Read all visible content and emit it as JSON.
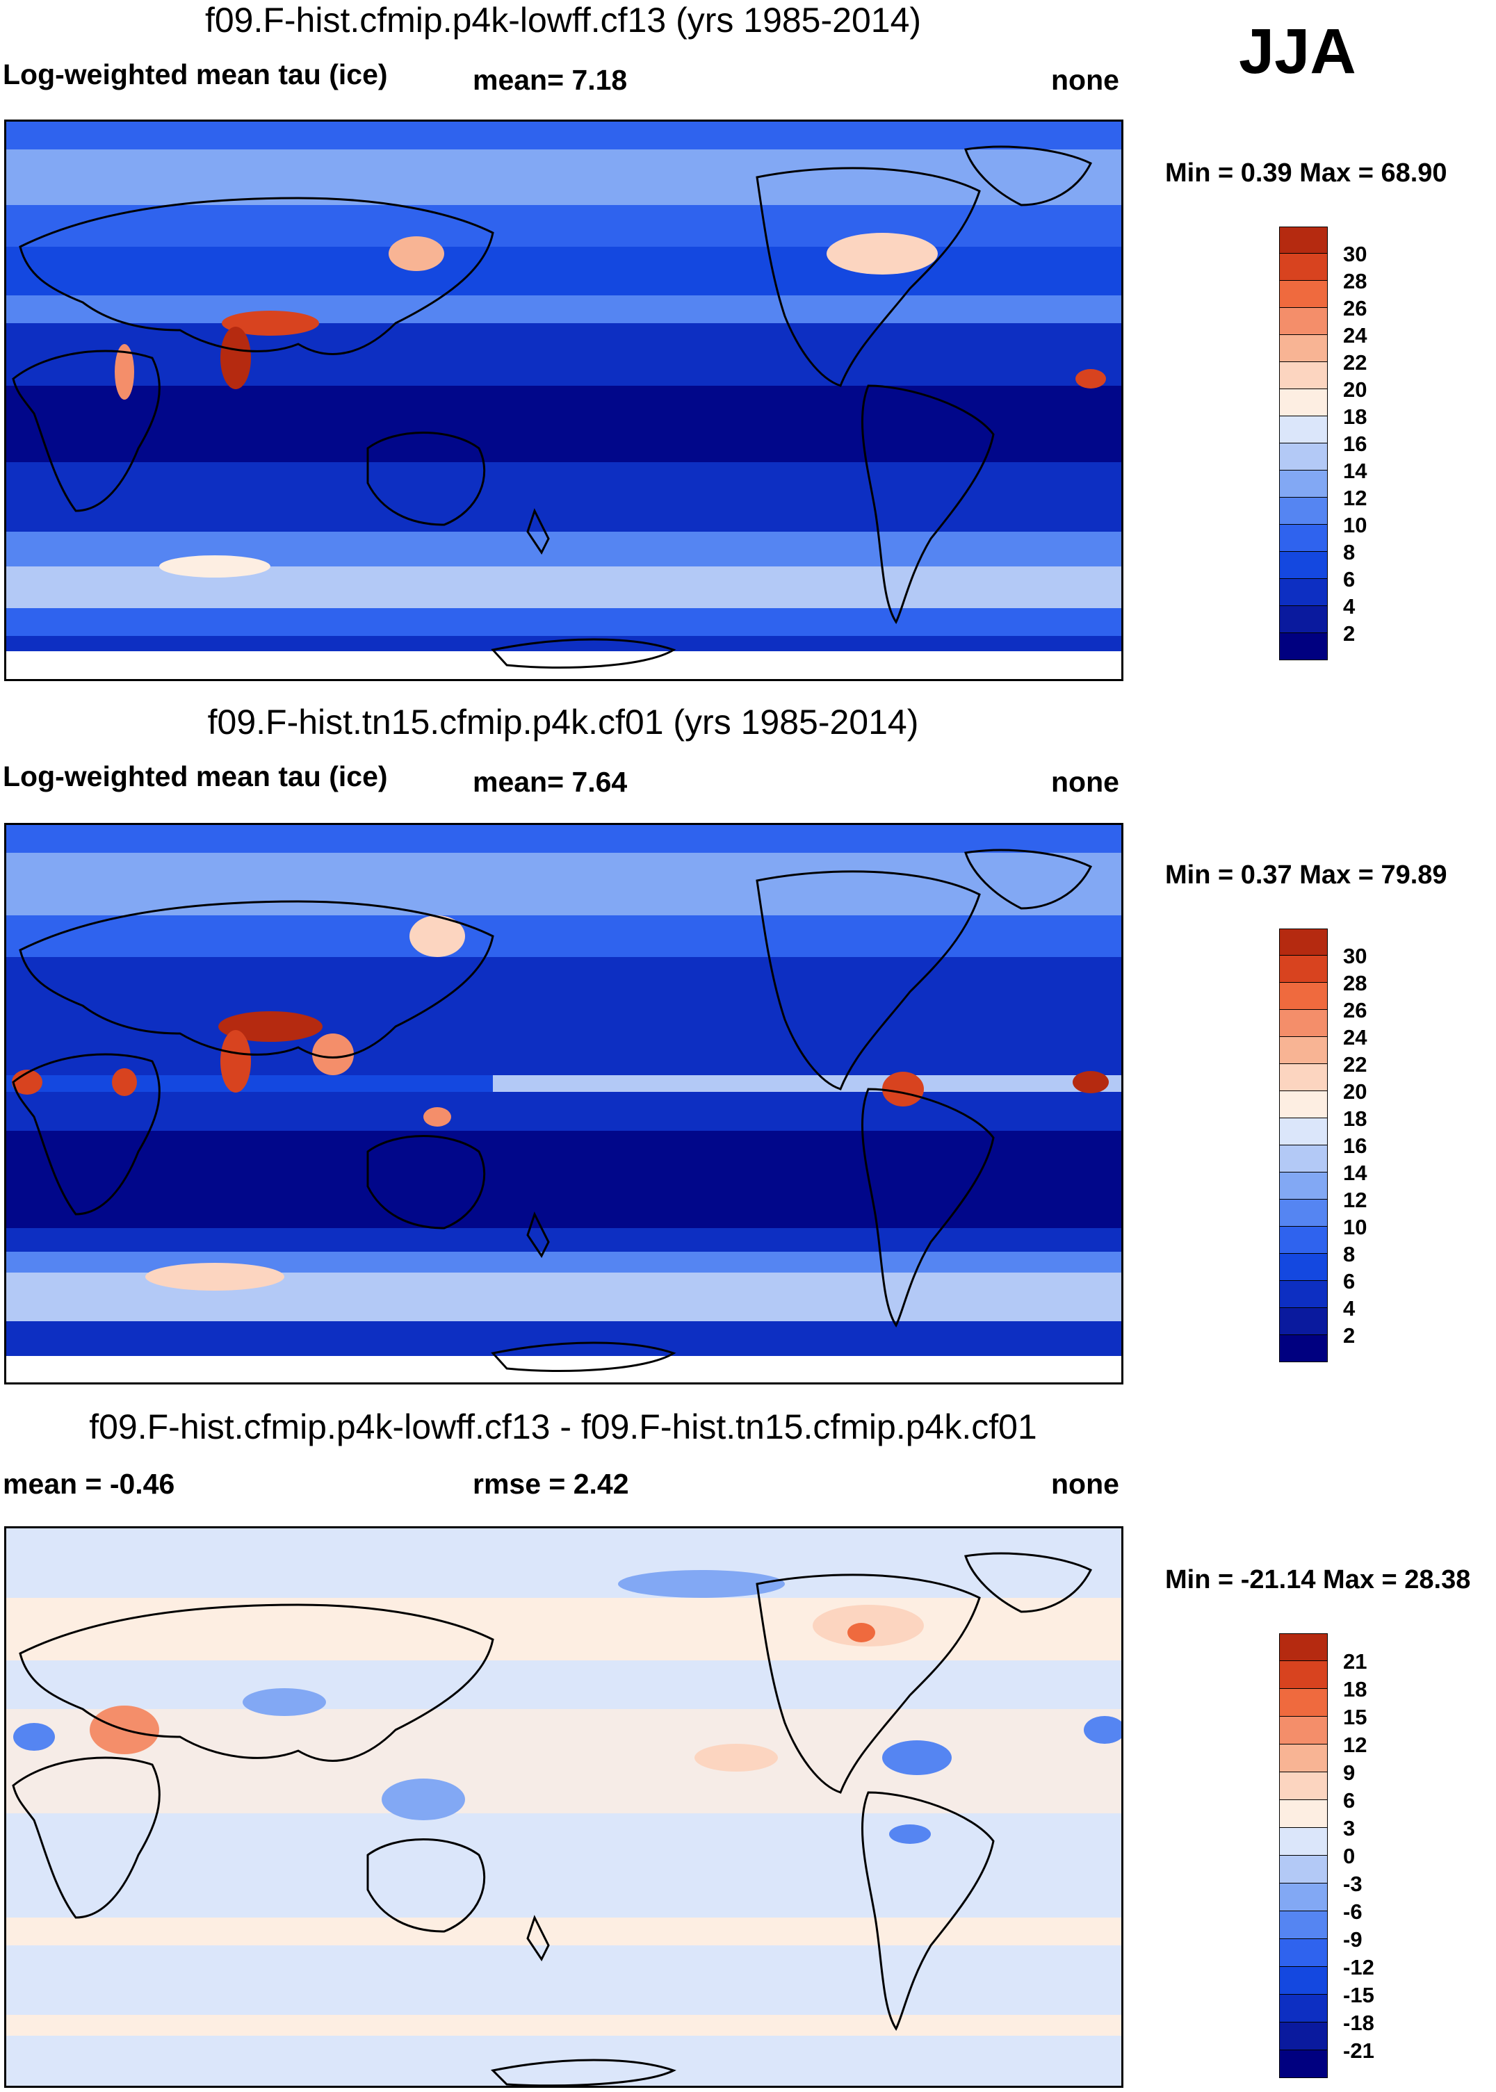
{
  "season": "JJA",
  "panels": [
    {
      "id": "p1",
      "title": "f09.F-hist.cfmip.p4k-lowff.cf13 (yrs 1985-2014)",
      "left_label": "Log-weighted mean tau (ice)",
      "center_label": "mean=   7.18",
      "right_label": "none",
      "minmax": "Min =   0.39 Max =  68.90",
      "colorbar_labels": [
        "30",
        "28",
        "26",
        "24",
        "22",
        "20",
        "18",
        "16",
        "14",
        "12",
        "10",
        "8",
        "6",
        "4",
        "2"
      ]
    },
    {
      "id": "p2",
      "title": "f09.F-hist.tn15.cfmip.p4k.cf01 (yrs 1985-2014)",
      "left_label": "Log-weighted mean tau (ice)",
      "center_label": "mean=   7.64",
      "right_label": "none",
      "minmax": "Min =   0.37 Max =  79.89",
      "colorbar_labels": [
        "30",
        "28",
        "26",
        "24",
        "22",
        "20",
        "18",
        "16",
        "14",
        "12",
        "10",
        "8",
        "6",
        "4",
        "2"
      ]
    },
    {
      "id": "p3",
      "title": "f09.F-hist.cfmip.p4k-lowff.cf13 - f09.F-hist.tn15.cfmip.p4k.cf01",
      "left_label": "mean =  -0.46",
      "center_label": "rmse =   2.42",
      "right_label": "none",
      "minmax": "Min = -21.14 Max =  28.38",
      "colorbar_labels": [
        "21",
        "18",
        "15",
        "12",
        "9",
        "6",
        "3",
        "0",
        "-3",
        "-6",
        "-9",
        "-12",
        "-15",
        "-18",
        "-21"
      ]
    }
  ],
  "chart_data": [
    {
      "type": "heatmap",
      "title": "f09.F-hist.cfmip.p4k-lowff.cf13 (yrs 1985-2014)",
      "variable": "Log-weighted mean tau (ice)",
      "units": "none",
      "mean": 7.18,
      "min": 0.39,
      "max": 68.9,
      "levels": [
        2,
        4,
        6,
        8,
        10,
        12,
        14,
        16,
        18,
        20,
        22,
        24,
        26,
        28,
        30
      ],
      "colors": [
        "#000080",
        "#0a1a9e",
        "#0d2fc2",
        "#1448e0",
        "#2f63ee",
        "#5585f2",
        "#82a8f4",
        "#b3c9f6",
        "#dbe6fa",
        "#fdeee2",
        "#fcd5c0",
        "#f8b494",
        "#f48e6a",
        "#ef6a3e",
        "#d8431f",
        "#b52a10"
      ]
    },
    {
      "type": "heatmap",
      "title": "f09.F-hist.tn15.cfmip.p4k.cf01 (yrs 1985-2014)",
      "variable": "Log-weighted mean tau (ice)",
      "units": "none",
      "mean": 7.64,
      "min": 0.37,
      "max": 79.89,
      "levels": [
        2,
        4,
        6,
        8,
        10,
        12,
        14,
        16,
        18,
        20,
        22,
        24,
        26,
        28,
        30
      ],
      "colors": [
        "#000080",
        "#0a1a9e",
        "#0d2fc2",
        "#1448e0",
        "#2f63ee",
        "#5585f2",
        "#82a8f4",
        "#b3c9f6",
        "#dbe6fa",
        "#fdeee2",
        "#fcd5c0",
        "#f8b494",
        "#f48e6a",
        "#ef6a3e",
        "#d8431f",
        "#b52a10"
      ]
    },
    {
      "type": "heatmap",
      "title": "f09.F-hist.cfmip.p4k-lowff.cf13 - f09.F-hist.tn15.cfmip.p4k.cf01",
      "variable": "difference",
      "units": "none",
      "mean": -0.46,
      "rmse": 2.42,
      "min": -21.14,
      "max": 28.38,
      "levels": [
        -21,
        -18,
        -15,
        -12,
        -9,
        -6,
        -3,
        0,
        3,
        6,
        9,
        12,
        15,
        18,
        21
      ],
      "colors": [
        "#000080",
        "#0a1a9e",
        "#0d2fc2",
        "#1448e0",
        "#2f63ee",
        "#5585f2",
        "#82a8f4",
        "#b3c9f6",
        "#dbe6fa",
        "#fdeee2",
        "#fcd5c0",
        "#f8b494",
        "#f48e6a",
        "#ef6a3e",
        "#d8431f",
        "#b52a10"
      ]
    }
  ]
}
